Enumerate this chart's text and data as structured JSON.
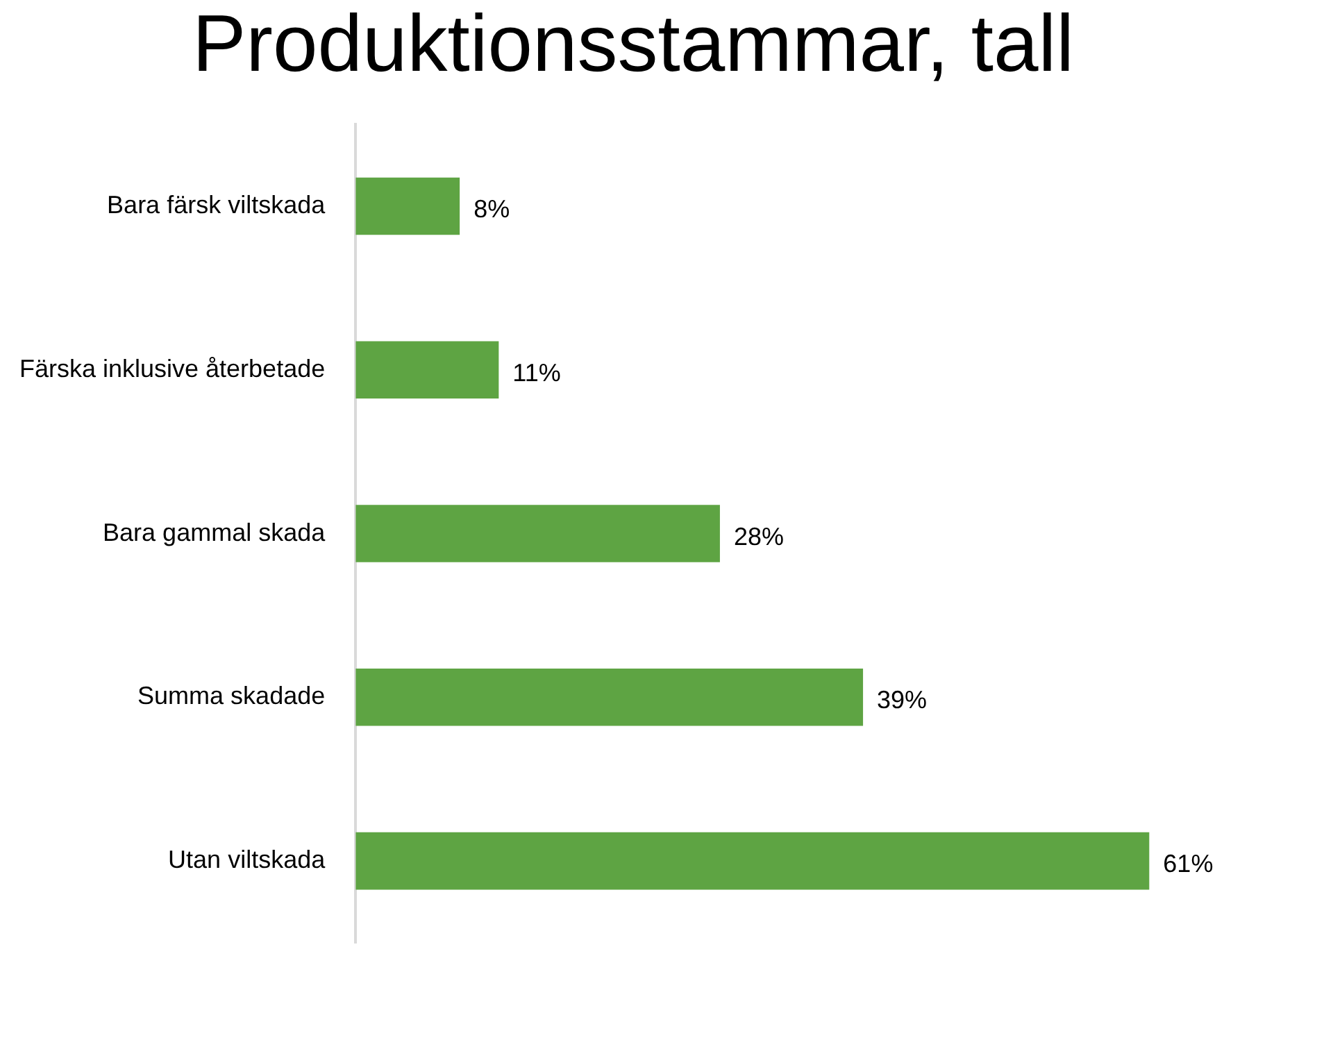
{
  "chart_data": {
    "type": "bar",
    "orientation": "horizontal",
    "title": "Produktionsstammar, tall",
    "categories": [
      "Bara färsk viltskada",
      "Färska inklusive återbetade",
      "Bara gammal skada",
      "Summa skadade",
      "Utan viltskada"
    ],
    "values": [
      8,
      11,
      28,
      39,
      61
    ],
    "value_labels": [
      "8%",
      "11%",
      "28%",
      "39%",
      "61%"
    ],
    "color": "#5ea443"
  }
}
